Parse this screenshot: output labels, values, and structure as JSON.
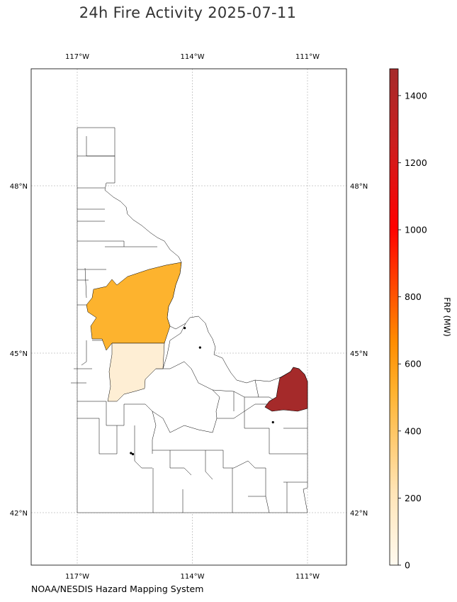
{
  "title": "24h Fire Activity 2025-07-11",
  "credit": "NOAA/NESDIS Hazard Mapping System",
  "map": {
    "lon_ticks": [
      {
        "lon": -117,
        "label": "117°W"
      },
      {
        "lon": -114,
        "label": "114°W"
      },
      {
        "lon": -111,
        "label": "111°W"
      }
    ],
    "lat_ticks": [
      {
        "lat": 48,
        "label": "48°N"
      },
      {
        "lat": 45,
        "label": "45°N"
      },
      {
        "lat": 42,
        "label": "42°N"
      }
    ],
    "extent": {
      "lon_min": -118.2,
      "lon_max": -110.05,
      "lat_min": 41.1,
      "lat_max": 50.1
    },
    "gridlines": true,
    "fire_points": [
      {
        "lon": -114.2,
        "lat": 45.45
      },
      {
        "lon": -113.8,
        "lat": 45.1
      },
      {
        "lon": -111.9,
        "lat": 43.7
      },
      {
        "lon": -115.55,
        "lat": 43.1
      },
      {
        "lon": -115.6,
        "lat": 43.12
      }
    ],
    "county_frp": [
      {
        "county": "Idaho",
        "frp": 360,
        "color": "#fdb32e"
      },
      {
        "county": "Valley",
        "frp": 75,
        "color": "#feeed4"
      },
      {
        "county": "Fremont",
        "frp": 1480,
        "color": "#a52a2a"
      }
    ]
  },
  "colorbar": {
    "label": "FRP (MW)",
    "min": 0,
    "max": 1480,
    "ticks": [
      0,
      200,
      400,
      600,
      800,
      1000,
      1200,
      1400
    ],
    "stops": [
      "#fffaf0",
      "#ffe4b5",
      "#ffa500",
      "#ff8000",
      "#ff0000",
      "#cc1f1f",
      "#a52a2a"
    ]
  }
}
